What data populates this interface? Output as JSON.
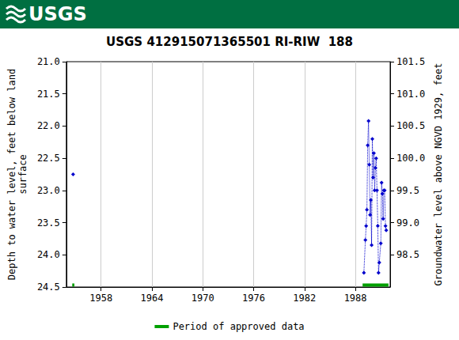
{
  "banner": {
    "logo": "USGS"
  },
  "chart_data": {
    "type": "line",
    "title": "USGS 412915071365501 RI-RIW  188",
    "ylabel": "Depth to water level, feet below land\nsurface",
    "y2label": "Groundwater level above NGVD 1929, feet",
    "x": [
      1954.7,
      null,
      1989.0,
      1989.18,
      1989.27,
      1989.36,
      1989.45,
      1989.55,
      1989.64,
      1989.73,
      1989.82,
      1989.91,
      1990.0,
      1990.09,
      1990.18,
      1990.27,
      1990.36,
      1990.45,
      1990.55,
      1990.64,
      1990.73,
      1990.82,
      1991.0,
      1991.09,
      1991.18,
      1991.27,
      1991.36,
      1991.45,
      1991.55,
      1991.64
    ],
    "values": [
      22.75,
      null,
      24.28,
      23.77,
      23.55,
      23.3,
      22.3,
      21.92,
      22.6,
      23.38,
      23.15,
      23.85,
      22.2,
      22.8,
      22.42,
      23.0,
      22.65,
      22.5,
      23.0,
      23.55,
      24.28,
      24.12,
      23.82,
      22.88,
      23.05,
      23.44,
      23.0,
      23.0,
      23.55,
      23.62
    ],
    "color": "#0000cc",
    "marker": "diamond",
    "line_style": "dotted",
    "approved": {
      "name": "Period of approved data",
      "color": "#00a000",
      "level": 24.47,
      "periods": [
        [
          1954.6,
          1954.85
        ],
        [
          1988.85,
          1991.9
        ]
      ]
    },
    "xlim": [
      1953.9,
      1992.1
    ],
    "xticks": [
      1958,
      1964,
      1970,
      1976,
      1982,
      1988
    ],
    "ylim": [
      24.5,
      21.0
    ],
    "yticks": [
      {
        "value": 21,
        "label": "21.0"
      },
      21.5,
      {
        "value": 22,
        "label": "22.0"
      },
      22.5,
      {
        "value": 23,
        "label": "23.0"
      },
      23.5,
      {
        "value": 24,
        "label": "24.0"
      },
      24.5
    ],
    "y2lim": [
      98.0,
      101.5
    ],
    "y2ticks": [
      98.5,
      {
        "value": 99,
        "label": "99.0"
      },
      99.5,
      {
        "value": 100,
        "label": "100.0"
      },
      100.5,
      {
        "value": 101,
        "label": "101.0"
      },
      101.5
    ],
    "grid": true,
    "legend": "bottom"
  }
}
